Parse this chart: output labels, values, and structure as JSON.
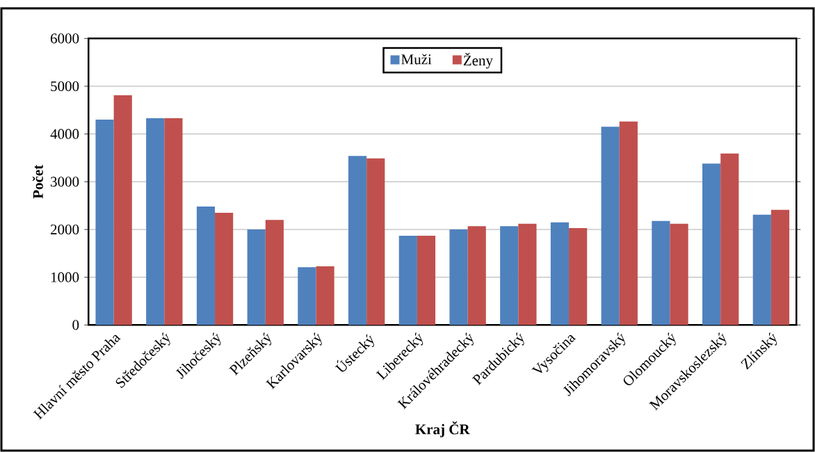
{
  "chart_data": {
    "type": "bar",
    "xlabel": "Kraj ČR",
    "ylabel": "Počet",
    "categories": [
      "Hlavní město Praha",
      "Středočeský",
      "Jihočeský",
      "Plzeňský",
      "Karlovarský",
      "Ústecký",
      "Liberecký",
      "Královéhradecký",
      "Pardubický",
      "Vysočina",
      "Jihomoravský",
      "Olomoucký",
      "Moravskoslezský",
      "Zlínský"
    ],
    "series": [
      {
        "name": "Muži",
        "color": "#4f81bd",
        "values": [
          4300,
          4330,
          2480,
          2000,
          1210,
          3540,
          1870,
          2000,
          2070,
          2150,
          4150,
          2180,
          3380,
          2310
        ]
      },
      {
        "name": "Ženy",
        "color": "#c0504d",
        "values": [
          4810,
          4330,
          2350,
          2200,
          1230,
          3490,
          1870,
          2070,
          2120,
          2030,
          4260,
          2120,
          3590,
          2410
        ]
      }
    ],
    "ylim": [
      0,
      6000
    ],
    "yticks": [
      0,
      1000,
      2000,
      3000,
      4000,
      5000,
      6000
    ],
    "grid": "y",
    "legend": "top"
  }
}
